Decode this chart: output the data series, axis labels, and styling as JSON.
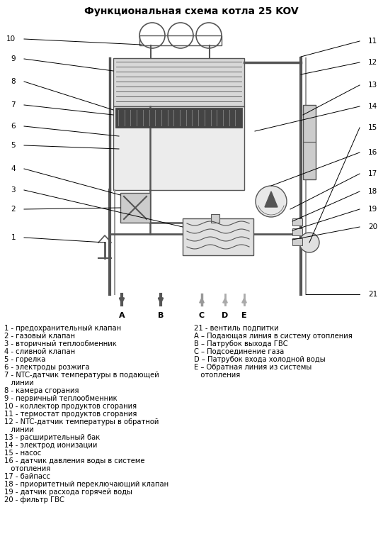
{
  "title": "Функциональная схема котла 25 KOV",
  "title_fontsize": 10,
  "bg_color": "#ffffff",
  "text_color": "#000000",
  "legend_left": [
    [
      "1 - предохранительный клапан",
      false
    ],
    [
      "2 - газовый клапан",
      false
    ],
    [
      "3 - вторичный теплообменник",
      false
    ],
    [
      "4 - сливной клапан",
      false
    ],
    [
      "5 - горелка",
      false
    ],
    [
      "6 - электроды розжига",
      false
    ],
    [
      "7 - NTC-датчик температуры в подающей",
      false
    ],
    [
      "   линии",
      true
    ],
    [
      "8 - камера сгорания",
      false
    ],
    [
      "9 - первичный теплообменник",
      false
    ],
    [
      "10 - коллектор продуктов сгорания",
      false
    ],
    [
      "11 - термостат продуктов сгорания",
      false
    ],
    [
      "12 - NTC-датчик температуры в обратной",
      false
    ],
    [
      "   линии",
      true
    ],
    [
      "13 - расширительный бак",
      false
    ],
    [
      "14 - электрод ионизации",
      false
    ],
    [
      "15 - насос",
      false
    ],
    [
      "16 - датчик давления воды в системе",
      false
    ],
    [
      "   отопления",
      true
    ],
    [
      "17 - байпасс",
      false
    ],
    [
      "18 - приоритетный переключающий клапан",
      false
    ],
    [
      "19 - датчик расхода горячей воды",
      false
    ],
    [
      "20 - фильтр ГВС",
      false
    ]
  ],
  "legend_right": [
    [
      "21 - вентиль подпитки",
      false
    ],
    [
      "A – Подающая линия в систему отопления",
      false
    ],
    [
      "B – Патрубок выхода ГВС",
      false
    ],
    [
      "C – Подсоединение газа",
      false
    ],
    [
      "D – Патрубок входа холодной воды",
      false
    ],
    [
      "E – Обратная линия из системы",
      false
    ],
    [
      "   отопления",
      true
    ]
  ],
  "label_fontsize": 7.2,
  "dgray": "#555555",
  "mgray": "#999999",
  "lgray": "#cccccc",
  "vlgray": "#e8e8e8"
}
